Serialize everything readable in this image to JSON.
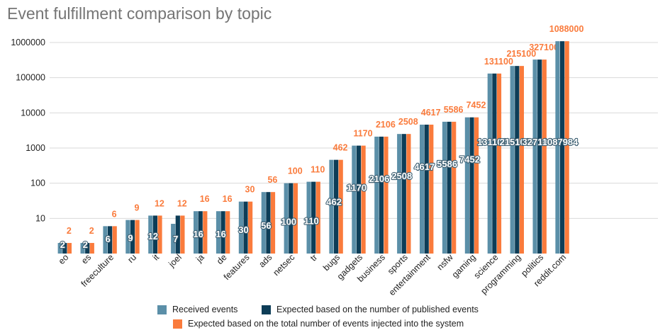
{
  "chart_data": {
    "type": "bar",
    "title": "Event fulfillment comparison by topic",
    "xlabel": "",
    "ylabel": "",
    "y_scale": "log",
    "ylim": [
      1,
      1000000
    ],
    "y_ticks": [
      "10",
      "100",
      "1000",
      "10000",
      "100000",
      "1000000"
    ],
    "grid": true,
    "legend_position": "bottom",
    "categories": [
      "eo",
      "es",
      "freeculture",
      "ru",
      "it",
      "joel",
      "ja",
      "de",
      "features",
      "ads",
      "netsec",
      "tr",
      "bugs",
      "gadgets",
      "business",
      "sports",
      "entertainment",
      "nsfw",
      "gaming",
      "science",
      "programming",
      "politics",
      "reddit.com"
    ],
    "series": [
      {
        "name": "Received events",
        "color": "#5b8fa8",
        "values": [
          2,
          2,
          6,
          9,
          12,
          7,
          16,
          16,
          30,
          56,
          100,
          110,
          462,
          1170,
          2106,
          2508,
          4617,
          5586,
          7452,
          131100,
          215100,
          327100,
          1087984
        ],
        "labels": [
          "2",
          "2",
          "6",
          "9",
          "12",
          "7",
          "16",
          "16",
          "30",
          "56",
          "100",
          "110",
          "462",
          "1170",
          "2106",
          "2508",
          "4617",
          "5586",
          "7452",
          "131100",
          "215100",
          "327100",
          "1087984"
        ]
      },
      {
        "name": "Expected based on the number of published events",
        "color": "#0d3d57",
        "values": [
          2,
          2,
          6,
          9,
          12,
          12,
          16,
          16,
          30,
          56,
          100,
          110,
          462,
          1170,
          2106,
          2508,
          4617,
          5586,
          7452,
          131100,
          215100,
          327100,
          1088000
        ]
      },
      {
        "name": "Expected based on the total number of events injected into the system",
        "color": "#fa7b3c",
        "values": [
          2,
          2,
          6,
          9,
          12,
          12,
          16,
          16,
          30,
          56,
          100,
          110,
          462,
          1170,
          2106,
          2508,
          4617,
          5586,
          7452,
          131100,
          215100,
          327100,
          1088000
        ],
        "labels": [
          "2",
          "2",
          "6",
          "9",
          "12",
          "12",
          "16",
          "16",
          "30",
          "56",
          "100",
          "110",
          "462",
          "1170",
          "2106",
          "2508",
          "4617",
          "5586",
          "7452",
          "131100",
          "215100",
          "327100",
          "1088000"
        ]
      }
    ]
  }
}
